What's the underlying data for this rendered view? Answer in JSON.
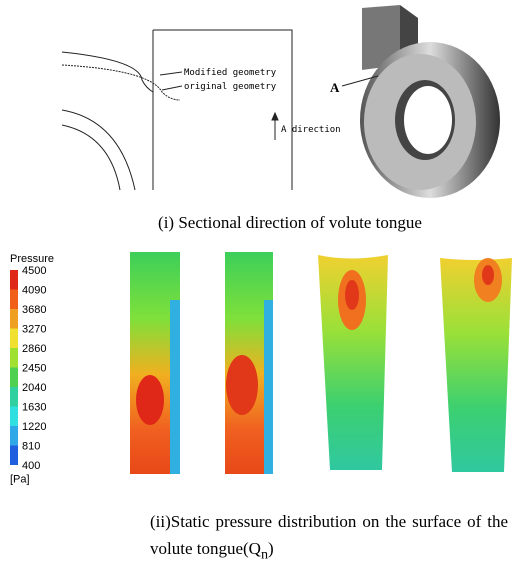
{
  "figure_i": {
    "labels": {
      "modified": "Modified geometry",
      "original": "original geometry",
      "direction": "A direction",
      "point": "A"
    },
    "caption": "(i) Sectional direction of volute tongue"
  },
  "figure_ii": {
    "colorbar": {
      "title": "Pressure",
      "unit": "[Pa]",
      "ticks": [
        4500,
        4090,
        3680,
        3270,
        2860,
        2450,
        2040,
        1630,
        1220,
        810,
        400
      ]
    },
    "caption": {
      "text": "(ii)Static pressure distribution on the surface of the volute tongue(Q",
      "subscript": "n",
      "closing": ")"
    }
  }
}
